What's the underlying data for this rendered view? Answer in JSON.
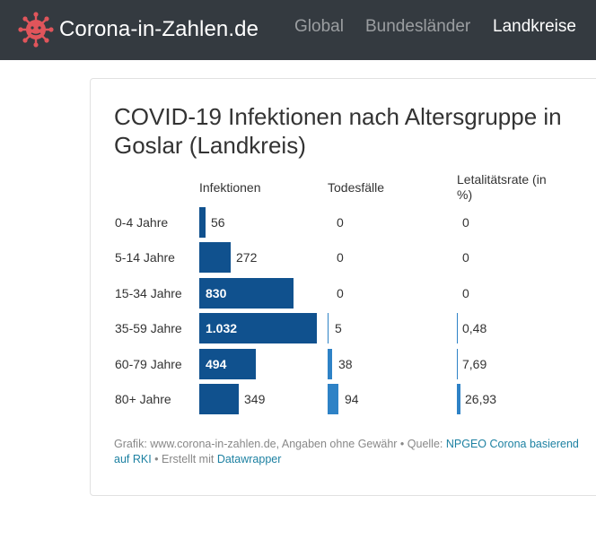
{
  "nav": {
    "brand": "Corona-in-Zahlen.de",
    "links": [
      "Global",
      "Bundesländer",
      "Landkreise"
    ],
    "active_index": 2,
    "logo_icon": "virus-icon",
    "logo_color": "#e0555b"
  },
  "chart": {
    "title": "COVID-19 Infektionen nach Altersgruppe in Goslar (Landkreis)",
    "columns": [
      "Infektionen",
      "Todesfälle",
      "Letalitätsrate (in %)"
    ],
    "bar_color": "#10518e",
    "small_bar_color": "#2e82c6"
  },
  "chart_data": {
    "type": "table",
    "title": "COVID-19 Infektionen nach Altersgruppe in Goslar (Landkreis)",
    "columns": [
      "Infektionen",
      "Todesfälle",
      "Letalitätsrate (in %)"
    ],
    "rows": [
      {
        "label": "0-4 Jahre",
        "infektionen": 56,
        "infektionen_text": "56",
        "todesfaelle": 0,
        "todesfaelle_text": "0",
        "letalitaet": 0,
        "letalitaet_text": "0"
      },
      {
        "label": "5-14 Jahre",
        "infektionen": 272,
        "infektionen_text": "272",
        "todesfaelle": 0,
        "todesfaelle_text": "0",
        "letalitaet": 0,
        "letalitaet_text": "0"
      },
      {
        "label": "15-34 Jahre",
        "infektionen": 830,
        "infektionen_text": "830",
        "todesfaelle": 0,
        "todesfaelle_text": "0",
        "letalitaet": 0,
        "letalitaet_text": "0"
      },
      {
        "label": "35-59 Jahre",
        "infektionen": 1032,
        "infektionen_text": "1.032",
        "todesfaelle": 5,
        "todesfaelle_text": "5",
        "letalitaet": 0.48,
        "letalitaet_text": "0,48"
      },
      {
        "label": "60-79 Jahre",
        "infektionen": 494,
        "infektionen_text": "494",
        "todesfaelle": 38,
        "todesfaelle_text": "38",
        "letalitaet": 7.69,
        "letalitaet_text": "7,69"
      },
      {
        "label": "80+ Jahre",
        "infektionen": 349,
        "infektionen_text": "349",
        "todesfaelle": 94,
        "todesfaelle_text": "94",
        "letalitaet": 26.93,
        "letalitaet_text": "26,93"
      }
    ]
  },
  "footer": {
    "prefix": "Grafik: www.corona-in-zahlen.de, Angaben ohne Gewähr • Quelle: ",
    "source_link": "NPGEO Corona basierend auf RKI",
    "middle": " • Erstellt mit ",
    "tool_link": "Datawrapper"
  }
}
